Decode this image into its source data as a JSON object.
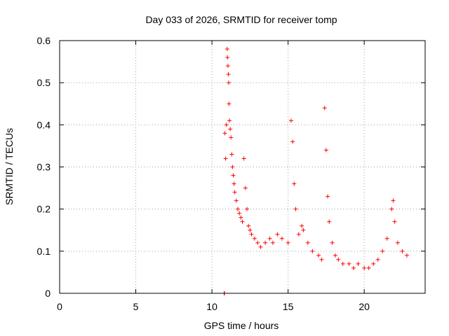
{
  "chart_data": {
    "type": "scatter",
    "title": "Day 033 of 2026, SRMTID for receiver tomp",
    "xlabel": "GPS time / hours",
    "ylabel": "SRMTID / TECUs",
    "xlim": [
      0,
      24
    ],
    "ylim": [
      0,
      0.6
    ],
    "xticks": [
      0,
      5,
      10,
      15,
      20
    ],
    "yticks": [
      0,
      0.1,
      0.2,
      0.3,
      0.4,
      0.5,
      0.6
    ],
    "xtick_labels": [
      "0",
      "5",
      "10",
      "15",
      "20"
    ],
    "ytick_labels": [
      "0",
      "0.1",
      "0.2",
      "0.3",
      "0.4",
      "0.5",
      "0.6"
    ],
    "grid": true,
    "marker": "+",
    "color": "#ff0000",
    "series": [
      {
        "name": "SRMTID",
        "points": [
          [
            10.8,
            0.0
          ],
          [
            10.82,
            0.0
          ],
          [
            10.85,
            0.38
          ],
          [
            10.9,
            0.32
          ],
          [
            10.95,
            0.4
          ],
          [
            11.0,
            0.58
          ],
          [
            11.02,
            0.56
          ],
          [
            11.05,
            0.54
          ],
          [
            11.08,
            0.52
          ],
          [
            11.1,
            0.5
          ],
          [
            11.12,
            0.45
          ],
          [
            11.15,
            0.41
          ],
          [
            11.2,
            0.39
          ],
          [
            11.25,
            0.37
          ],
          [
            11.3,
            0.33
          ],
          [
            11.35,
            0.3
          ],
          [
            11.4,
            0.28
          ],
          [
            11.45,
            0.26
          ],
          [
            11.5,
            0.24
          ],
          [
            11.6,
            0.22
          ],
          [
            11.7,
            0.2
          ],
          [
            11.8,
            0.19
          ],
          [
            11.9,
            0.18
          ],
          [
            12.0,
            0.17
          ],
          [
            12.1,
            0.32
          ],
          [
            12.2,
            0.25
          ],
          [
            12.3,
            0.2
          ],
          [
            12.4,
            0.16
          ],
          [
            12.5,
            0.15
          ],
          [
            12.6,
            0.14
          ],
          [
            12.8,
            0.13
          ],
          [
            13.0,
            0.12
          ],
          [
            13.2,
            0.11
          ],
          [
            13.5,
            0.12
          ],
          [
            13.8,
            0.13
          ],
          [
            14.0,
            0.12
          ],
          [
            14.3,
            0.14
          ],
          [
            14.6,
            0.13
          ],
          [
            15.0,
            0.12
          ],
          [
            15.2,
            0.41
          ],
          [
            15.3,
            0.36
          ],
          [
            15.4,
            0.26
          ],
          [
            15.5,
            0.2
          ],
          [
            15.7,
            0.14
          ],
          [
            15.9,
            0.16
          ],
          [
            16.0,
            0.15
          ],
          [
            16.3,
            0.12
          ],
          [
            16.6,
            0.1
          ],
          [
            17.0,
            0.09
          ],
          [
            17.2,
            0.08
          ],
          [
            17.4,
            0.44
          ],
          [
            17.5,
            0.34
          ],
          [
            17.6,
            0.23
          ],
          [
            17.7,
            0.17
          ],
          [
            17.9,
            0.12
          ],
          [
            18.1,
            0.09
          ],
          [
            18.3,
            0.08
          ],
          [
            18.6,
            0.07
          ],
          [
            19.0,
            0.07
          ],
          [
            19.3,
            0.06
          ],
          [
            19.6,
            0.07
          ],
          [
            20.0,
            0.06
          ],
          [
            20.3,
            0.06
          ],
          [
            20.6,
            0.07
          ],
          [
            20.9,
            0.08
          ],
          [
            21.2,
            0.1
          ],
          [
            21.5,
            0.13
          ],
          [
            21.8,
            0.2
          ],
          [
            21.9,
            0.22
          ],
          [
            22.0,
            0.17
          ],
          [
            22.2,
            0.12
          ],
          [
            22.5,
            0.1
          ],
          [
            22.8,
            0.09
          ]
        ]
      }
    ]
  }
}
